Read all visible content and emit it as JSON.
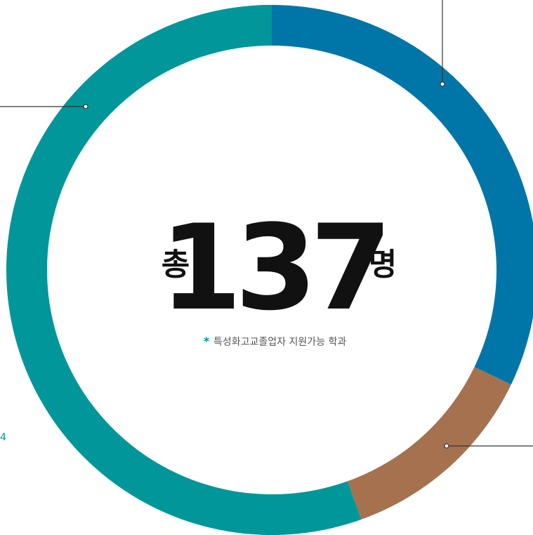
{
  "chart_data": {
    "type": "donut",
    "values": [
      44,
      17,
      76
    ],
    "colors": [
      "#0076a8",
      "#a5714f",
      "#00969a"
    ],
    "center_prefix": "총",
    "center_value": 137,
    "center_suffix": "명",
    "note_mark": "*",
    "note": "특성화고교졸업자 지원가능 학과",
    "annotation": "4"
  }
}
